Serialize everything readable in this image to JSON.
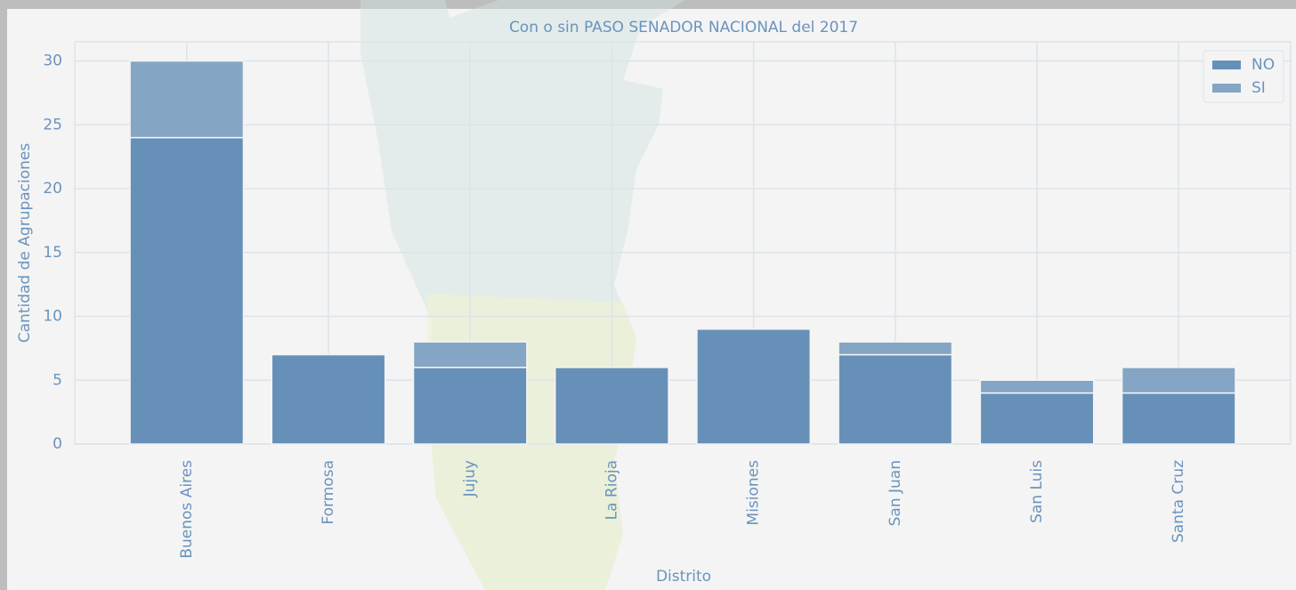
{
  "chart_data": {
    "type": "stacked_bar",
    "title": "Con o sin PASO SENADOR NACIONAL del 2017",
    "x_label": "Distrito",
    "y_label": "Cantidad de Agrupaciones",
    "categories": [
      "Buenos Aires",
      "Formosa",
      "Jujuy",
      "La Rioja",
      "Misiones",
      "San Juan",
      "San Luis",
      "Santa Cruz"
    ],
    "series": [
      {
        "name": "NO",
        "color": "#6690b8",
        "values": [
          24,
          7,
          6,
          6,
          9,
          7,
          4,
          4
        ]
      },
      {
        "name": "SI",
        "color": "#84a5c4",
        "values": [
          6,
          0,
          2,
          0,
          0,
          1,
          1,
          2
        ]
      }
    ],
    "ylim": [
      0,
      31.5
    ],
    "yticks": [
      0,
      5,
      10,
      15,
      20,
      25,
      30
    ],
    "grid": true,
    "legend": "upper right"
  }
}
